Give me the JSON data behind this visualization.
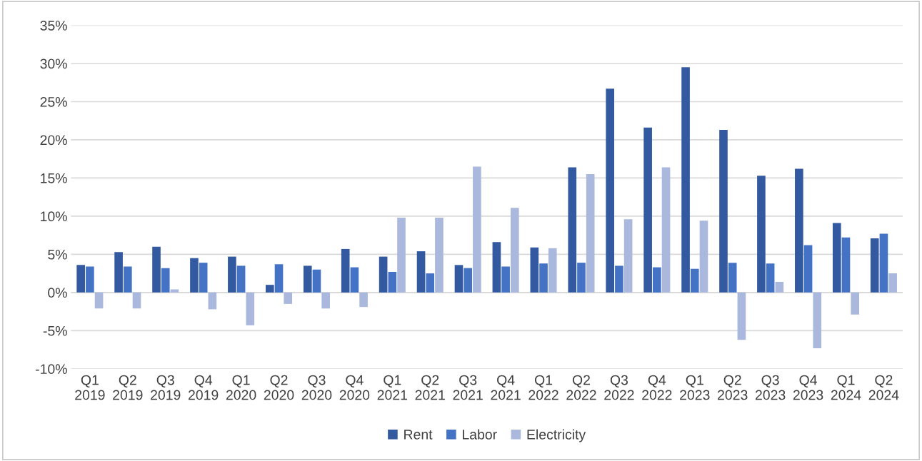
{
  "chart_data": {
    "type": "bar",
    "categories": [
      "Q1\n2019",
      "Q2\n2019",
      "Q3\n2019",
      "Q4\n2019",
      "Q1\n2020",
      "Q2\n2020",
      "Q3\n2020",
      "Q4\n2020",
      "Q1\n2021",
      "Q2\n2021",
      "Q3\n2021",
      "Q4\n2021",
      "Q1\n2022",
      "Q2\n2022",
      "Q3\n2022",
      "Q4\n2022",
      "Q1\n2023",
      "Q2\n2023",
      "Q3\n2023",
      "Q4\n2023",
      "Q1\n2024",
      "Q2\n2024"
    ],
    "series": [
      {
        "name": "Rent",
        "color": "#335aa0",
        "values": [
          3.6,
          5.3,
          6.0,
          4.5,
          4.7,
          1.0,
          3.5,
          5.7,
          4.7,
          5.4,
          3.6,
          6.6,
          5.9,
          16.4,
          26.7,
          21.6,
          29.5,
          21.3,
          15.3,
          16.2,
          9.1,
          7.1
        ]
      },
      {
        "name": "Labor",
        "color": "#4472c4",
        "values": [
          3.4,
          3.4,
          3.2,
          3.9,
          3.5,
          3.7,
          3.0,
          3.3,
          2.7,
          2.5,
          3.2,
          3.4,
          3.8,
          3.9,
          3.5,
          3.3,
          3.1,
          3.9,
          3.8,
          6.2,
          7.2,
          7.7
        ]
      },
      {
        "name": "Electricity",
        "color": "#a9b8dc",
        "values": [
          -2.1,
          -2.1,
          0.4,
          -2.2,
          -4.3,
          -1.5,
          -2.1,
          -1.9,
          9.8,
          9.8,
          16.5,
          11.1,
          5.8,
          15.5,
          9.6,
          16.4,
          9.4,
          -6.2,
          1.4,
          -7.3,
          -2.9,
          2.5
        ]
      }
    ],
    "ylim": [
      -10,
      35
    ],
    "yticks": [
      {
        "value": -10,
        "label": "-10%"
      },
      {
        "value": -5,
        "label": "-5%"
      },
      {
        "value": 0,
        "label": "0%"
      },
      {
        "value": 5,
        "label": "5%"
      },
      {
        "value": 10,
        "label": "10%"
      },
      {
        "value": 15,
        "label": "15%"
      },
      {
        "value": 20,
        "label": "20%"
      },
      {
        "value": 25,
        "label": "25%"
      },
      {
        "value": 30,
        "label": "30%"
      },
      {
        "value": 35,
        "label": "35%"
      }
    ],
    "grid": "y",
    "legend": "bottom"
  }
}
